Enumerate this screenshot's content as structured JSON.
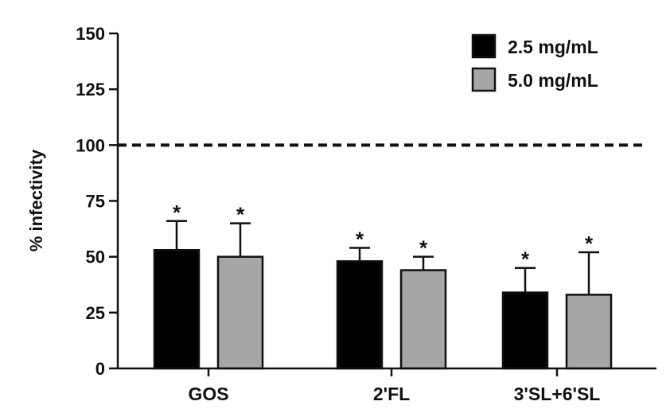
{
  "chart_data": {
    "type": "bar",
    "title": "",
    "xlabel": "",
    "ylabel": "% infectivity",
    "ylim": [
      0,
      150
    ],
    "yticks": [
      0,
      25,
      50,
      75,
      100,
      125,
      150
    ],
    "grid": false,
    "legend_position": "top-right",
    "reference_line": {
      "y": 100,
      "style": "dashed"
    },
    "categories": [
      "GOS",
      "2'FL",
      "3'SL+6'SL"
    ],
    "series": [
      {
        "name": "2.5 mg/mL",
        "color": "#000000",
        "values": [
          53,
          48,
          34
        ],
        "error_upper": [
          66,
          54,
          45
        ],
        "significance": [
          "*",
          "*",
          "*"
        ]
      },
      {
        "name": "5.0 mg/mL",
        "color": "#a6a6a6",
        "values": [
          50,
          44,
          33
        ],
        "error_upper": [
          65,
          50,
          52
        ],
        "significance": [
          "*",
          "*",
          "*"
        ]
      }
    ]
  }
}
